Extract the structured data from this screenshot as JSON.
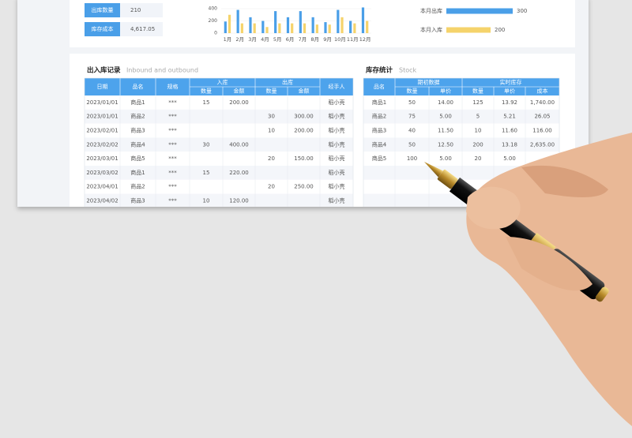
{
  "summary": [
    {
      "label": "出库数量",
      "value": "210"
    },
    {
      "label": "库存成本",
      "value": "4,617.05"
    }
  ],
  "chart_data": [
    {
      "type": "bar",
      "categories": [
        "1月",
        "2月",
        "3月",
        "4月",
        "5月",
        "6月",
        "7月",
        "8月",
        "9月",
        "10月",
        "11月",
        "12月"
      ],
      "series": [
        {
          "color": "#4a9fe8",
          "values": [
            190,
            380,
            260,
            200,
            360,
            260,
            360,
            260,
            180,
            380,
            200,
            420
          ]
        },
        {
          "color": "#f5d36b",
          "values": [
            300,
            160,
            160,
            100,
            160,
            160,
            160,
            140,
            140,
            260,
            160,
            200
          ]
        }
      ],
      "ylim": [
        0,
        400
      ],
      "yticks": [
        0,
        200,
        400
      ]
    },
    {
      "type": "barh",
      "categories": [
        "本月出库",
        "本月入库"
      ],
      "values": [
        300,
        200
      ],
      "colors": [
        "#4a9fe8",
        "#f5d36b"
      ]
    }
  ],
  "records": {
    "title": "出入库记录",
    "subtitle": "Inbound and outbound",
    "columns": [
      "日期",
      "品名",
      "规格",
      "入库",
      "出库",
      "经手人"
    ],
    "subcolumns": [
      "数量",
      "金额",
      "数量",
      "金额"
    ],
    "rows": [
      [
        "2023/01/01",
        "商品1",
        "***",
        "15",
        "200.00",
        null,
        null,
        "稻小壳"
      ],
      [
        "2023/01/01",
        "商品2",
        "***",
        null,
        null,
        "30",
        "300.00",
        "稻小壳"
      ],
      [
        "2023/02/01",
        "商品3",
        "***",
        null,
        null,
        "10",
        "200.00",
        "稻小壳"
      ],
      [
        "2023/02/02",
        "商品4",
        "***",
        "30",
        "400.00",
        null,
        null,
        "稻小壳"
      ],
      [
        "2023/03/01",
        "商品5",
        "***",
        null,
        null,
        "20",
        "150.00",
        "稻小壳"
      ],
      [
        "2023/03/02",
        "商品1",
        "***",
        "15",
        "220.00",
        null,
        null,
        "稻小壳"
      ],
      [
        "2023/04/01",
        "商品2",
        "***",
        null,
        null,
        "20",
        "250.00",
        "稻小壳"
      ],
      [
        "2023/04/02",
        "商品3",
        "***",
        "10",
        "120.00",
        null,
        null,
        "稻小壳"
      ]
    ]
  },
  "stock": {
    "title": "库存统计",
    "subtitle": "Stock",
    "columns": [
      "品名",
      "期初数据",
      "实时库存"
    ],
    "subcolumns": [
      "数量",
      "单价",
      "数量",
      "单价",
      "成本"
    ],
    "rows": [
      [
        "商品1",
        "50",
        "14.00",
        "125",
        "13.92",
        "1,740.00"
      ],
      [
        "商品2",
        "75",
        "5.00",
        "5",
        "5.21",
        "26.05"
      ],
      [
        "商品3",
        "40",
        "11.50",
        "10",
        "11.60",
        "116.00"
      ],
      [
        "商品4",
        "50",
        "12.50",
        "200",
        "13.18",
        "2,635.00"
      ],
      [
        "商品5",
        "100",
        "5.00",
        "20",
        "5.00"
      ]
    ]
  }
}
